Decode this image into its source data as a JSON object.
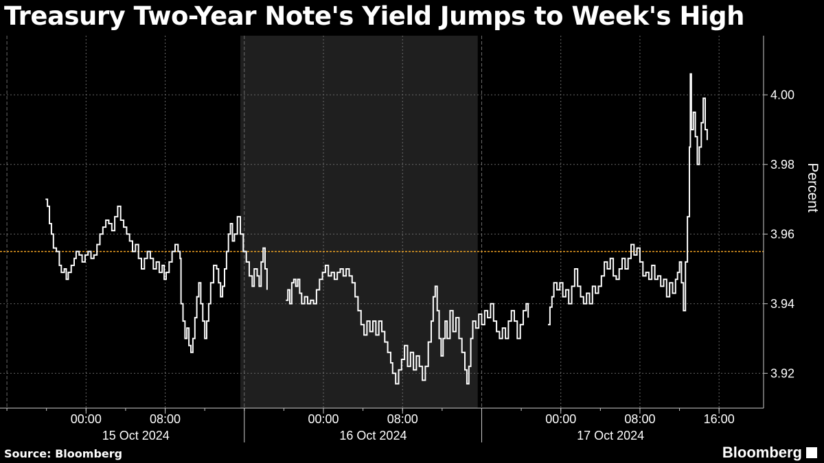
{
  "title": "Treasury Two-Year Note's Yield Jumps to Week's High",
  "source": "Source: Bloomberg",
  "brand": "Bloomberg",
  "colors": {
    "background": "#000000",
    "line": "#ffffff",
    "shade": "#1f1f1f",
    "reference": "#f5a623",
    "grid": "#6b6b6b"
  },
  "chart_data": {
    "type": "line",
    "ylabel": "Percent",
    "ylim": [
      3.91,
      4.017
    ],
    "yticks": [
      "3.92",
      "3.94",
      "3.96",
      "3.98",
      "4.00"
    ],
    "ytick_values": [
      3.92,
      3.94,
      3.96,
      3.98,
      4.0
    ],
    "x_unit": "hours since 00:00 on 15 Oct 2024",
    "xlim": [
      -8.7,
      68.5
    ],
    "xtick_labels": [
      "00:00",
      "08:00",
      "00:00",
      "08:00",
      "00:00",
      "08:00",
      "16:00"
    ],
    "xtick_values": [
      0,
      8,
      24,
      32,
      48,
      56,
      64
    ],
    "date_labels": [
      "15 Oct 2024",
      "16 Oct 2024",
      "17 Oct 2024"
    ],
    "date_centers": [
      6,
      30,
      54
    ],
    "shaded_region": [
      15.6,
      39.6
    ],
    "reference_line": 3.955,
    "series": [
      {
        "name": "",
        "segments": [
          [
            [
              -4.1,
              3.97
            ],
            [
              -3.9,
              3.968
            ],
            [
              -3.7,
              3.963
            ],
            [
              -3.5,
              3.96
            ],
            [
              -3.3,
              3.956
            ],
            [
              -3.0,
              3.955
            ],
            [
              -2.7,
              3.951
            ],
            [
              -2.5,
              3.949
            ],
            [
              -2.2,
              3.95
            ],
            [
              -2.0,
              3.947
            ],
            [
              -1.8,
              3.949
            ],
            [
              -1.5,
              3.951
            ],
            [
              -1.2,
              3.953
            ],
            [
              -1.0,
              3.955
            ],
            [
              -0.7,
              3.954
            ],
            [
              -0.4,
              3.952
            ],
            [
              -0.1,
              3.954
            ],
            [
              0.2,
              3.955
            ],
            [
              0.5,
              3.953
            ],
            [
              0.8,
              3.954
            ],
            [
              1.1,
              3.957
            ],
            [
              1.4,
              3.96
            ],
            [
              1.7,
              3.962
            ],
            [
              2.0,
              3.964
            ],
            [
              2.3,
              3.963
            ],
            [
              2.6,
              3.961
            ],
            [
              2.9,
              3.965
            ],
            [
              3.2,
              3.968
            ],
            [
              3.5,
              3.964
            ],
            [
              3.8,
              3.962
            ],
            [
              4.1,
              3.96
            ],
            [
              4.4,
              3.958
            ],
            [
              4.7,
              3.955
            ],
            [
              5.0,
              3.957
            ],
            [
              5.3,
              3.953
            ],
            [
              5.6,
              3.95
            ],
            [
              5.9,
              3.953
            ],
            [
              6.2,
              3.955
            ],
            [
              6.5,
              3.953
            ],
            [
              6.8,
              3.95
            ],
            [
              7.1,
              3.952
            ],
            [
              7.4,
              3.949
            ],
            [
              7.7,
              3.951
            ],
            [
              7.9,
              3.947
            ],
            [
              8.1,
              3.949
            ],
            [
              8.4,
              3.952
            ],
            [
              8.7,
              3.955
            ],
            [
              9.0,
              3.957
            ],
            [
              9.3,
              3.955
            ],
            [
              9.5,
              3.953
            ],
            [
              9.6,
              3.94
            ],
            [
              9.8,
              3.935
            ],
            [
              10.0,
              3.93
            ],
            [
              10.2,
              3.933
            ],
            [
              10.4,
              3.928
            ],
            [
              10.6,
              3.926
            ],
            [
              10.8,
              3.93
            ],
            [
              11.0,
              3.936
            ],
            [
              11.2,
              3.942
            ],
            [
              11.4,
              3.946
            ],
            [
              11.6,
              3.94
            ],
            [
              11.8,
              3.935
            ],
            [
              12.0,
              3.93
            ],
            [
              12.2,
              3.935
            ],
            [
              12.4,
              3.94
            ],
            [
              12.6,
              3.946
            ],
            [
              12.9,
              3.951
            ],
            [
              13.2,
              3.95
            ],
            [
              13.4,
              3.946
            ],
            [
              13.6,
              3.942
            ],
            [
              13.8,
              3.945
            ],
            [
              14.0,
              3.95
            ],
            [
              14.2,
              3.955
            ],
            [
              14.4,
              3.96
            ],
            [
              14.6,
              3.963
            ],
            [
              14.8,
              3.958
            ],
            [
              15.0,
              3.96
            ],
            [
              15.3,
              3.965
            ],
            [
              15.6,
              3.96
            ],
            [
              15.9,
              3.955
            ],
            [
              16.2,
              3.952
            ],
            [
              16.5,
              3.948
            ],
            [
              16.8,
              3.945
            ],
            [
              17.0,
              3.95
            ],
            [
              17.3,
              3.948
            ],
            [
              17.5,
              3.945
            ],
            [
              17.7,
              3.952
            ],
            [
              17.9,
              3.956
            ],
            [
              18.1,
              3.95
            ],
            [
              18.3,
              3.944
            ]
          ],
          [
            [
              20.2,
              3.941
            ],
            [
              20.4,
              3.944
            ],
            [
              20.6,
              3.94
            ],
            [
              20.8,
              3.946
            ],
            [
              21.0,
              3.947
            ],
            [
              21.2,
              3.945
            ],
            [
              21.4,
              3.947
            ],
            [
              21.6,
              3.943
            ],
            [
              21.8,
              3.94
            ],
            [
              22.1,
              3.942
            ],
            [
              22.4,
              3.94
            ],
            [
              22.7,
              3.941
            ],
            [
              23.0,
              3.94
            ],
            [
              23.3,
              3.944
            ],
            [
              23.6,
              3.947
            ],
            [
              23.9,
              3.949
            ],
            [
              24.2,
              3.951
            ],
            [
              24.5,
              3.948
            ],
            [
              24.8,
              3.949
            ],
            [
              25.1,
              3.947
            ],
            [
              25.4,
              3.949
            ],
            [
              25.7,
              3.95
            ],
            [
              26.0,
              3.948
            ],
            [
              26.3,
              3.95
            ],
            [
              26.6,
              3.948
            ],
            [
              26.9,
              3.946
            ],
            [
              27.2,
              3.942
            ],
            [
              27.5,
              3.938
            ],
            [
              27.8,
              3.934
            ],
            [
              28.1,
              3.931
            ],
            [
              28.4,
              3.935
            ],
            [
              28.7,
              3.932
            ],
            [
              29.0,
              3.935
            ],
            [
              29.3,
              3.931
            ],
            [
              29.6,
              3.935
            ],
            [
              29.9,
              3.932
            ],
            [
              30.2,
              3.929
            ],
            [
              30.5,
              3.926
            ],
            [
              30.8,
              3.923
            ],
            [
              31.0,
              3.92
            ],
            [
              31.3,
              3.917
            ],
            [
              31.6,
              3.921
            ],
            [
              31.9,
              3.924
            ],
            [
              32.2,
              3.928
            ],
            [
              32.5,
              3.922
            ],
            [
              32.8,
              3.926
            ],
            [
              33.1,
              3.921
            ],
            [
              33.4,
              3.925
            ],
            [
              33.7,
              3.922
            ],
            [
              34.0,
              3.918
            ],
            [
              34.3,
              3.922
            ],
            [
              34.6,
              3.929
            ],
            [
              34.9,
              3.935
            ],
            [
              35.1,
              3.942
            ],
            [
              35.3,
              3.945
            ],
            [
              35.5,
              3.938
            ],
            [
              35.7,
              3.93
            ],
            [
              35.9,
              3.925
            ],
            [
              36.1,
              3.93
            ],
            [
              36.3,
              3.935
            ],
            [
              36.5,
              3.93
            ],
            [
              36.8,
              3.938
            ],
            [
              37.1,
              3.932
            ],
            [
              37.4,
              3.936
            ],
            [
              37.7,
              3.93
            ],
            [
              38.0,
              3.926
            ],
            [
              38.3,
              3.921
            ],
            [
              38.5,
              3.917
            ],
            [
              38.7,
              3.922
            ],
            [
              38.9,
              3.93
            ],
            [
              39.1,
              3.935
            ],
            [
              39.4,
              3.933
            ],
            [
              39.7,
              3.937
            ],
            [
              40.0,
              3.934
            ],
            [
              40.3,
              3.938
            ],
            [
              40.6,
              3.936
            ],
            [
              40.9,
              3.94
            ],
            [
              41.2,
              3.935
            ],
            [
              41.5,
              3.932
            ],
            [
              41.8,
              3.93
            ],
            [
              42.1,
              3.933
            ],
            [
              42.4,
              3.93
            ],
            [
              42.7,
              3.935
            ],
            [
              43.0,
              3.938
            ],
            [
              43.3,
              3.935
            ],
            [
              43.6,
              3.93
            ],
            [
              43.9,
              3.934
            ],
            [
              44.2,
              3.938
            ],
            [
              44.5,
              3.94
            ],
            [
              44.7,
              3.936
            ]
          ],
          [
            [
              46.7,
              3.934
            ],
            [
              46.9,
              3.939
            ],
            [
              47.1,
              3.942
            ],
            [
              47.3,
              3.946
            ],
            [
              47.6,
              3.944
            ],
            [
              47.9,
              3.946
            ],
            [
              48.2,
              3.942
            ],
            [
              48.5,
              3.944
            ],
            [
              48.8,
              3.94
            ],
            [
              49.1,
              3.945
            ],
            [
              49.4,
              3.95
            ],
            [
              49.7,
              3.945
            ],
            [
              50.0,
              3.942
            ],
            [
              50.3,
              3.94
            ],
            [
              50.6,
              3.943
            ],
            [
              50.9,
              3.94
            ],
            [
              51.2,
              3.945
            ],
            [
              51.5,
              3.943
            ],
            [
              51.8,
              3.945
            ],
            [
              52.1,
              3.948
            ],
            [
              52.4,
              3.952
            ],
            [
              52.7,
              3.95
            ],
            [
              53.0,
              3.953
            ],
            [
              53.3,
              3.948
            ],
            [
              53.6,
              3.947
            ],
            [
              53.9,
              3.95
            ],
            [
              54.2,
              3.953
            ],
            [
              54.5,
              3.95
            ],
            [
              54.8,
              3.953
            ],
            [
              55.1,
              3.957
            ],
            [
              55.4,
              3.954
            ],
            [
              55.7,
              3.956
            ],
            [
              56.0,
              3.952
            ],
            [
              56.3,
              3.948
            ],
            [
              56.6,
              3.949
            ],
            [
              56.9,
              3.947
            ],
            [
              57.2,
              3.951
            ],
            [
              57.5,
              3.947
            ],
            [
              57.8,
              3.948
            ],
            [
              58.1,
              3.945
            ],
            [
              58.4,
              3.947
            ],
            [
              58.7,
              3.942
            ],
            [
              59.0,
              3.946
            ],
            [
              59.3,
              3.943
            ],
            [
              59.6,
              3.947
            ],
            [
              59.8,
              3.949
            ],
            [
              60.0,
              3.952
            ],
            [
              60.2,
              3.946
            ],
            [
              60.4,
              3.938
            ],
            [
              60.6,
              3.952
            ],
            [
              60.8,
              3.965
            ],
            [
              61.0,
              3.985
            ],
            [
              61.1,
              4.006
            ],
            [
              61.2,
              3.99
            ],
            [
              61.4,
              3.995
            ],
            [
              61.6,
              3.988
            ],
            [
              61.8,
              3.98
            ],
            [
              62.0,
              3.985
            ],
            [
              62.2,
              3.992
            ],
            [
              62.4,
              3.999
            ],
            [
              62.6,
              3.99
            ],
            [
              62.8,
              3.987
            ]
          ]
        ]
      }
    ]
  }
}
